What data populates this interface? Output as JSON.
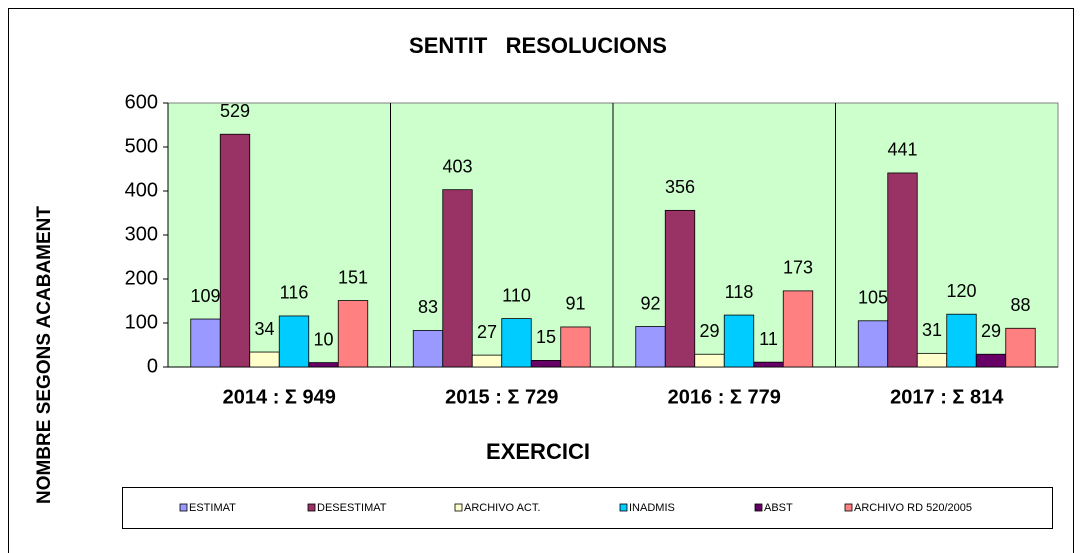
{
  "chart_data": {
    "type": "bar",
    "title": "SENTIT   RESOLUCIONS",
    "x_label": "EXERCICI",
    "y_label": "NOMBRE SEGONS ACABAMENT",
    "categories": [
      "2014 : Σ 949",
      "2015 : Σ 729",
      "2016 : Σ 779",
      "2017 : Σ 814"
    ],
    "series": [
      {
        "name": "ESTIMAT",
        "color": "#9999ff",
        "values": [
          109,
          83,
          92,
          105
        ]
      },
      {
        "name": "DESESTIMAT",
        "color": "#993366",
        "values": [
          529,
          403,
          356,
          441
        ]
      },
      {
        "name": "ARCHIVO ACT.",
        "color": "#ffffcc",
        "values": [
          34,
          27,
          29,
          31
        ]
      },
      {
        "name": "INADMIS",
        "color": "#00ccff",
        "values": [
          116,
          110,
          118,
          120
        ]
      },
      {
        "name": "ABST",
        "color": "#660066",
        "values": [
          10,
          15,
          11,
          29
        ]
      },
      {
        "name": "ARCHIVO RD 520/2005",
        "color": "#ff8080",
        "values": [
          151,
          91,
          173,
          88
        ]
      }
    ],
    "ylim": [
      0,
      600
    ],
    "yticks": [
      0,
      100,
      200,
      300,
      400,
      500,
      600
    ],
    "grid": false,
    "legend": "bottom",
    "plot_background": "#ccffcc"
  }
}
